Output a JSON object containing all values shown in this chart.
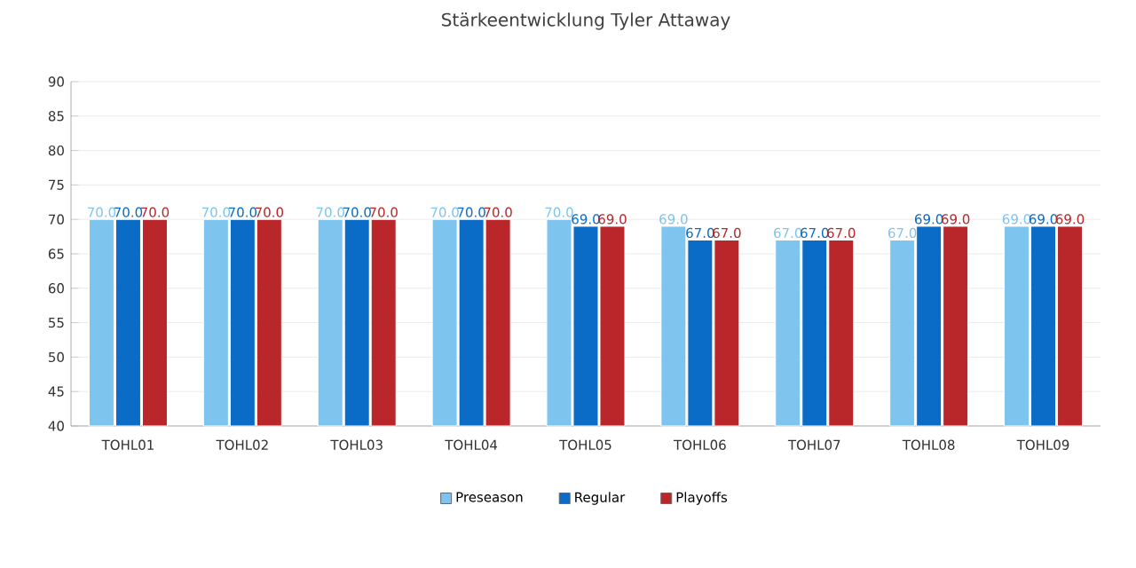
{
  "chart_data": {
    "type": "bar",
    "title": "Stärkeentwicklung Tyler Attaway",
    "categories": [
      "TOHL01",
      "TOHL02",
      "TOHL03",
      "TOHL04",
      "TOHL05",
      "TOHL06",
      "TOHL07",
      "TOHL08",
      "TOHL09"
    ],
    "series": [
      {
        "name": "Preseason",
        "color": "#7dc4ee",
        "values": [
          70,
          70,
          70,
          70,
          70,
          69,
          67,
          67,
          69
        ],
        "value_labels": [
          "70.0",
          "70.0",
          "70.0",
          "70.0",
          "70.0",
          "69.0",
          "67.0",
          "67.0",
          "69.0"
        ]
      },
      {
        "name": "Regular",
        "color": "#0a6cc6",
        "values": [
          70,
          70,
          70,
          70,
          69,
          67,
          67,
          69,
          69
        ],
        "value_labels": [
          "70.0",
          "70.0",
          "70.0",
          "70.0",
          "69.0",
          "67.0",
          "67.0",
          "69.0",
          "69.0"
        ]
      },
      {
        "name": "Playoffs",
        "color": "#b9272a",
        "values": [
          70,
          70,
          70,
          70,
          69,
          67,
          67,
          69,
          69
        ],
        "value_labels": [
          "70.0",
          "70.0",
          "70.0",
          "70.0",
          "69.0",
          "67.0",
          "67.0",
          "69.0",
          "69.0"
        ]
      }
    ],
    "ylim": [
      40,
      90
    ],
    "yticks": [
      40,
      45,
      50,
      55,
      60,
      65,
      70,
      75,
      80,
      85,
      90
    ],
    "grid": "y",
    "legend": "bottom"
  }
}
